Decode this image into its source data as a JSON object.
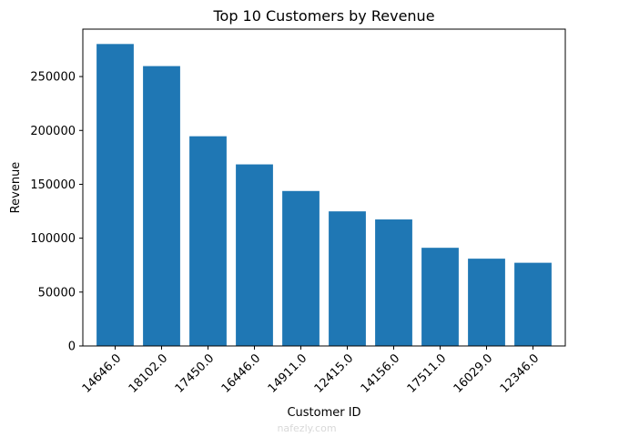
{
  "chart_data": {
    "type": "bar",
    "title": "Top 10 Customers by Revenue",
    "xlabel": "Customer ID",
    "ylabel": "Revenue",
    "categories": [
      "14646.0",
      "18102.0",
      "17450.0",
      "16446.0",
      "14911.0",
      "12415.0",
      "14156.0",
      "17511.0",
      "16029.0",
      "12346.0"
    ],
    "values": [
      280200,
      259700,
      194600,
      168500,
      143800,
      124900,
      117400,
      91100,
      81000,
      77200
    ],
    "ylim": [
      0,
      294000
    ],
    "yticks": [
      0,
      50000,
      100000,
      150000,
      200000,
      250000
    ],
    "bar_color": "#1f77b4",
    "grid": false
  },
  "watermark": {
    "name": "nafezly-logo",
    "text": "nafezly.com"
  }
}
